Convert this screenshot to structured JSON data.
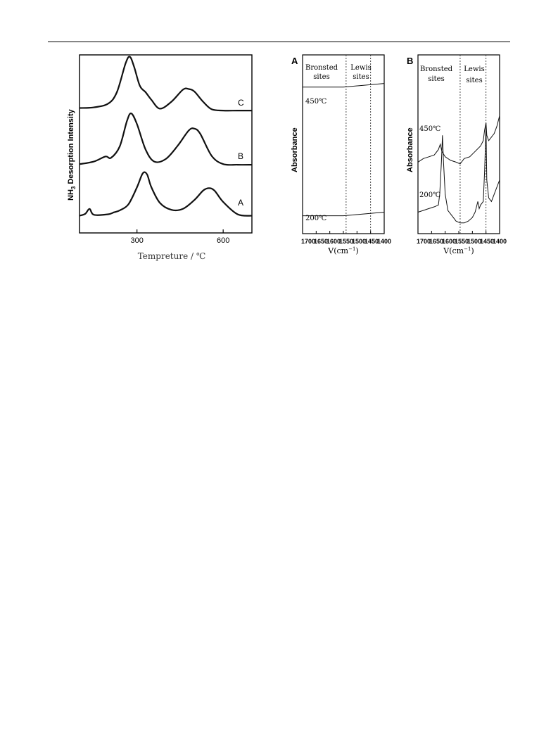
{
  "chart_data": [
    {
      "type": "line",
      "ylabel": "NH3 Desorption Intensity",
      "ylabel_main": "NH",
      "ylabel_sub": "3",
      "ylabel_rest": " Desorption Intensity",
      "xlabel": "Tempreture / ℃",
      "xlim": [
        100,
        700
      ],
      "xticks": [
        "300",
        "600"
      ],
      "xtick_values": [
        300,
        600
      ],
      "series": [
        {
          "name": "C",
          "x": [
            100,
            150,
            200,
            230,
            260,
            275,
            290,
            310,
            330,
            350,
            380,
            420,
            460,
            480,
            500,
            530,
            560,
            600,
            650,
            700
          ],
          "y": [
            0.5,
            0.6,
            1.2,
            3.0,
            7.5,
            8.6,
            7.0,
            4.0,
            3.0,
            1.8,
            0.4,
            1.5,
            3.4,
            3.5,
            3.1,
            1.5,
            0.3,
            0.1,
            0.1,
            0.1
          ]
        },
        {
          "name": "B",
          "x": [
            100,
            150,
            190,
            210,
            240,
            265,
            280,
            300,
            330,
            360,
            400,
            440,
            480,
            500,
            520,
            560,
            600,
            650,
            700
          ],
          "y": [
            0.2,
            0.6,
            1.4,
            1.2,
            3.0,
            7.0,
            8.2,
            6.5,
            2.5,
            0.6,
            1.0,
            3.0,
            5.5,
            5.8,
            5.0,
            1.5,
            0.2,
            0.1,
            0.1
          ]
        },
        {
          "name": "A",
          "x": [
            100,
            120,
            135,
            150,
            200,
            220,
            240,
            270,
            300,
            320,
            335,
            350,
            380,
            420,
            460,
            500,
            530,
            550,
            570,
            600,
            650,
            700
          ],
          "y": [
            0.2,
            0.6,
            1.6,
            0.4,
            0.5,
            0.9,
            1.3,
            2.5,
            6.0,
            8.8,
            8.6,
            6.0,
            2.8,
            1.4,
            1.6,
            3.4,
            5.3,
            5.8,
            5.3,
            3.0,
            0.5,
            0.2
          ]
        }
      ]
    },
    {
      "type": "line",
      "panel": "A",
      "ylabel": "Absorbance",
      "xlabel_main": "V(cm",
      "xlabel_sup": "−1",
      "xlabel_close": ")",
      "xlim": [
        1700,
        1400
      ],
      "xticks": [
        "1700",
        "1650",
        "1600",
        "1550",
        "1500",
        "1450",
        "1400"
      ],
      "region_labels": [
        {
          "line1": "Bronsted",
          "line2": "sites"
        },
        {
          "line1": "Lewis",
          "line2": "sites"
        }
      ],
      "dashed_lines": [
        1540,
        1450
      ],
      "series": [
        {
          "name": "450℃",
          "x": [
            1700,
            1550,
            1400
          ],
          "y": [
            0.82,
            0.82,
            0.84
          ]
        },
        {
          "name": "200℃",
          "x": [
            1700,
            1550,
            1400
          ],
          "y": [
            0.1,
            0.1,
            0.12
          ]
        }
      ]
    },
    {
      "type": "line",
      "panel": "B",
      "ylabel": "Absorbance",
      "xlabel_main": "V(cm",
      "xlabel_sup": "−1",
      "xlabel_close": ")",
      "xlim": [
        1700,
        1400
      ],
      "xticks": [
        "1700",
        "1650",
        "1600",
        "1550",
        "1500",
        "1450",
        "1400"
      ],
      "region_labels": [
        {
          "line1": "Bronsted",
          "line2": "sites"
        },
        {
          "line1": "Lewis",
          "line2": "sites"
        }
      ],
      "dashed_lines": [
        1545,
        1450
      ],
      "series": [
        {
          "name": "450℃",
          "x": [
            1700,
            1680,
            1660,
            1640,
            1625,
            1618,
            1612,
            1600,
            1580,
            1560,
            1545,
            1530,
            1510,
            1490,
            1470,
            1460,
            1455,
            1450,
            1447,
            1440,
            1420,
            1410,
            1400
          ],
          "y": [
            0.4,
            0.42,
            0.43,
            0.44,
            0.47,
            0.5,
            0.46,
            0.43,
            0.41,
            0.4,
            0.39,
            0.42,
            0.43,
            0.46,
            0.49,
            0.52,
            0.58,
            0.62,
            0.55,
            0.52,
            0.56,
            0.6,
            0.66
          ]
        },
        {
          "name": "200℃",
          "x": [
            1700,
            1680,
            1660,
            1640,
            1625,
            1620,
            1614,
            1610,
            1606,
            1600,
            1590,
            1575,
            1560,
            1545,
            1530,
            1515,
            1500,
            1490,
            1480,
            1475,
            1470,
            1460,
            1455,
            1450,
            1447,
            1440,
            1430,
            1420,
            1410,
            1400
          ],
          "y": [
            0.12,
            0.13,
            0.14,
            0.15,
            0.16,
            0.22,
            0.4,
            0.55,
            0.4,
            0.22,
            0.13,
            0.1,
            0.07,
            0.06,
            0.06,
            0.07,
            0.09,
            0.12,
            0.18,
            0.14,
            0.16,
            0.18,
            0.35,
            0.6,
            0.3,
            0.2,
            0.18,
            0.22,
            0.26,
            0.3
          ]
        }
      ]
    }
  ]
}
